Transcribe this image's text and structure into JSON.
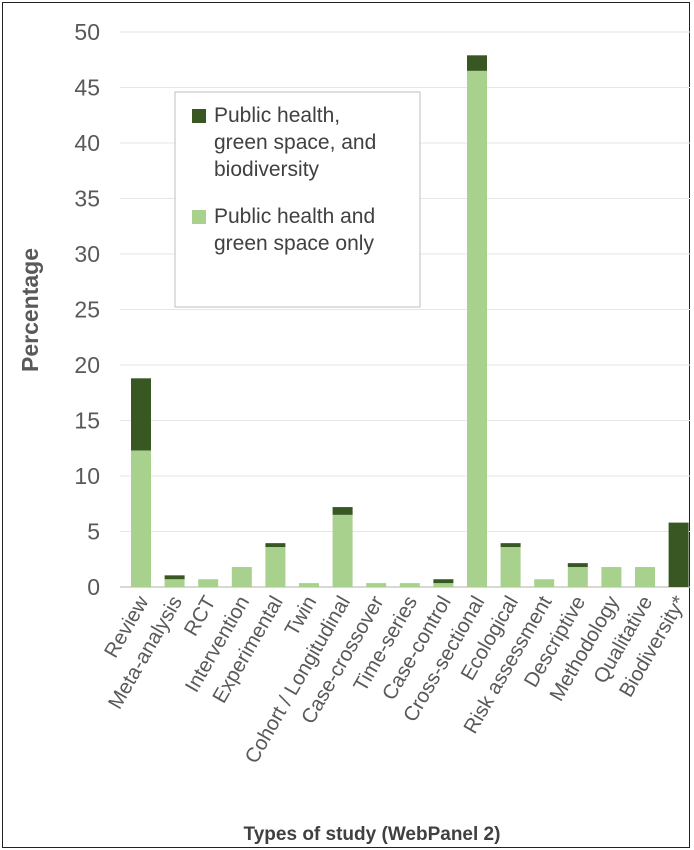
{
  "chart_data": {
    "type": "bar",
    "stacked": true,
    "xlabel": "Types of study (WebPanel 2)",
    "ylabel": "Percentage",
    "ylim": [
      0,
      50
    ],
    "yticks": [
      0,
      5,
      10,
      15,
      20,
      25,
      30,
      35,
      40,
      45,
      50
    ],
    "grid": true,
    "legend_position": "upper-left inside plot",
    "categories": [
      "Review",
      "Meta-analysis",
      "RCT",
      "Intervention",
      "Experimental",
      "Twin",
      "Cohort / Longitudinal",
      "Case-crossover",
      "Time-series",
      "Case-control",
      "Cross-sectional",
      "Ecological",
      "Risk assessment",
      "Descriptive",
      "Methodology",
      "Qualitative",
      "Biodiversity*"
    ],
    "series": [
      {
        "name": "Public health and green space only",
        "color": "#a9d18e",
        "values": [
          12.3,
          0.7,
          0.7,
          1.8,
          3.6,
          0.35,
          6.5,
          0.35,
          0.35,
          0.35,
          46.5,
          3.6,
          0.7,
          1.8,
          1.8,
          1.8,
          0
        ]
      },
      {
        "name": "Public health, green space, and biodiversity",
        "color": "#385723",
        "values": [
          6.5,
          0.35,
          0,
          0,
          0.35,
          0,
          0.7,
          0,
          0,
          0.35,
          1.4,
          0.35,
          0,
          0.35,
          0,
          0,
          5.8
        ]
      }
    ],
    "legend": [
      {
        "series": 1,
        "lines": [
          "Public health,",
          "green space, and",
          "biodiversity"
        ]
      },
      {
        "series": 0,
        "lines": [
          "Public health and",
          "green space only"
        ]
      }
    ]
  }
}
